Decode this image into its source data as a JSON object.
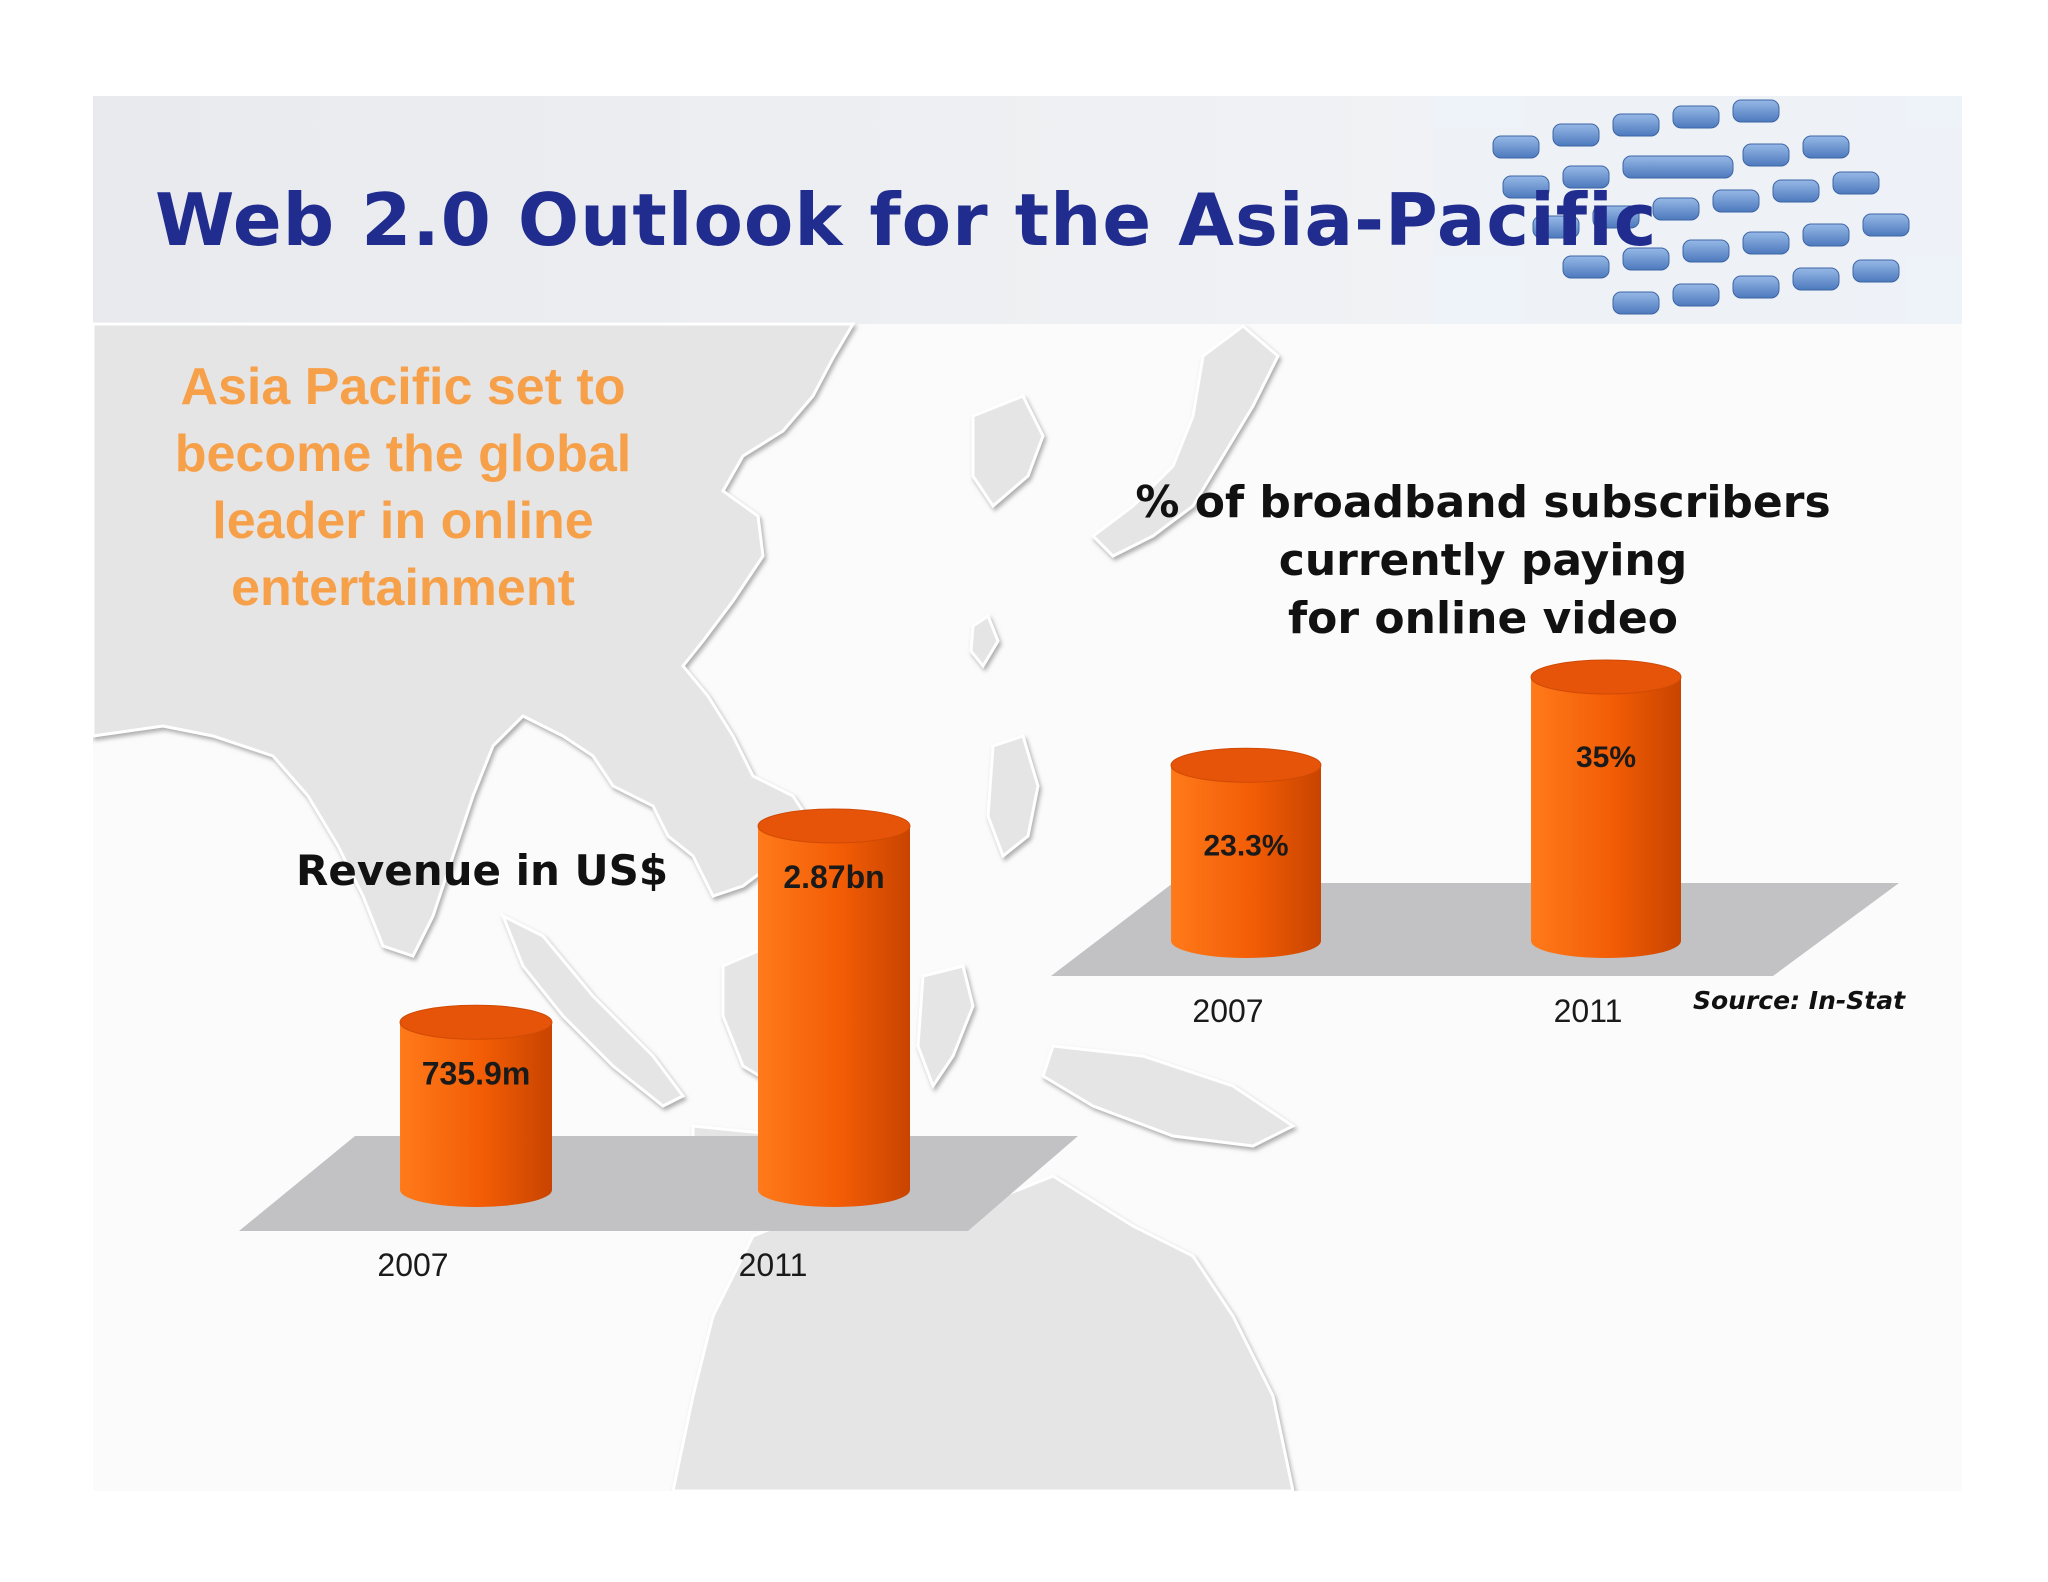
{
  "slide": {
    "title": "Web 2.0 Outlook for the Asia-Pacific",
    "tagline": [
      "Asia Pacific set to",
      "become the global",
      "leader in online",
      "entertainment"
    ],
    "source": "Source: In-Stat",
    "colors": {
      "title": "#202c8e",
      "tagline": "#f7a04a",
      "bar": "#f25c05",
      "floor": "#c2c1c3"
    }
  },
  "chart_data": [
    {
      "type": "bar",
      "title": "Revenue in US$",
      "categories": [
        "2007",
        "2011"
      ],
      "values": [
        735.9,
        2870
      ],
      "value_unit": "US$ million",
      "data_labels": [
        "735.9m",
        "2.87bn"
      ],
      "xlabel": "",
      "ylabel": "",
      "grid": false,
      "legend": "none"
    },
    {
      "type": "bar",
      "title_lines": [
        "% of broadband subscribers",
        "currently paying",
        "for online video"
      ],
      "categories": [
        "2007",
        "2011"
      ],
      "values": [
        23.3,
        35
      ],
      "value_unit": "%",
      "data_labels": [
        "23.3%",
        "35%"
      ],
      "xlabel": "",
      "ylabel": "",
      "grid": false,
      "legend": "none"
    }
  ]
}
